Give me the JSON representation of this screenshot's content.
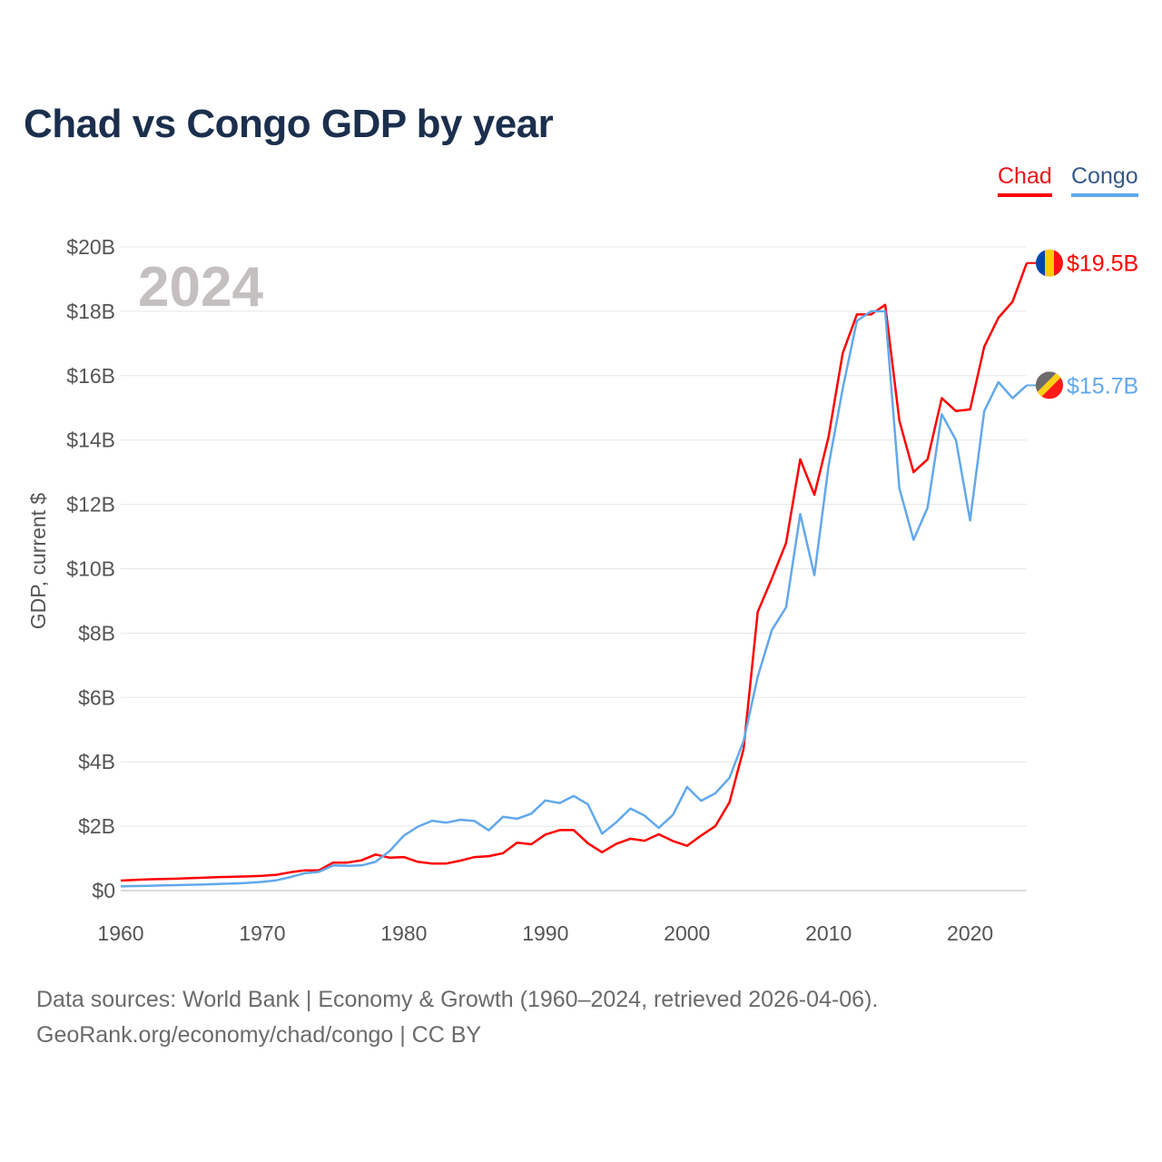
{
  "title": "Chad vs Congo GDP by year",
  "legend": [
    {
      "name": "Chad",
      "color": "#ff0000"
    },
    {
      "name": "Congo",
      "color": "#62a8eb"
    }
  ],
  "footer": {
    "line1": "Data sources: World Bank | Economy & Growth (1960–2024, retrieved 2026-04-06).",
    "line2": "GeoRank.org/economy/chad/congo | CC BY"
  },
  "chart_data": {
    "type": "line",
    "title": "Chad vs Congo GDP by year",
    "ylabel": "GDP, current $",
    "xlabel": "",
    "year_label": "2024",
    "xlim": [
      1960,
      2024
    ],
    "ylim": [
      0,
      20
    ],
    "x_ticks": [
      1960,
      1970,
      1980,
      1990,
      2000,
      2010,
      2020
    ],
    "x_tick_labels": [
      "1960",
      "1970",
      "1980",
      "1990",
      "2000",
      "2010",
      "2020"
    ],
    "y_ticks": [
      0,
      2,
      4,
      6,
      8,
      10,
      12,
      14,
      16,
      18,
      20
    ],
    "y_tick_labels": [
      "$0",
      "$2B",
      "$4B",
      "$6B",
      "$8B",
      "$10B",
      "$12B",
      "$14B",
      "$16B",
      "$18B",
      "$20B"
    ],
    "grid": true,
    "legend_position": "top-right",
    "start_year": 1960,
    "series": [
      {
        "name": "Chad",
        "color": "#ff0000",
        "flag": "chad-flag",
        "end_label": "$19.5B",
        "values": [
          0.31,
          0.33,
          0.35,
          0.36,
          0.37,
          0.39,
          0.4,
          0.42,
          0.43,
          0.44,
          0.46,
          0.49,
          0.57,
          0.63,
          0.63,
          0.87,
          0.87,
          0.94,
          1.12,
          1.02,
          1.04,
          0.89,
          0.84,
          0.84,
          0.93,
          1.04,
          1.07,
          1.16,
          1.49,
          1.44,
          1.74,
          1.88,
          1.88,
          1.47,
          1.19,
          1.45,
          1.61,
          1.55,
          1.75,
          1.54,
          1.39,
          1.71,
          2.0,
          2.74,
          4.4,
          8.66,
          9.7,
          10.8,
          13.4,
          12.3,
          14.1,
          16.7,
          17.9,
          17.9,
          18.2,
          14.6,
          13.0,
          13.4,
          15.3,
          14.9,
          14.95,
          16.9,
          17.8,
          18.3,
          19.5
        ]
      },
      {
        "name": "Congo",
        "color": "#62a8eb",
        "flag": "congo-flag",
        "end_label": "$15.7B",
        "values": [
          0.13,
          0.14,
          0.15,
          0.16,
          0.17,
          0.18,
          0.19,
          0.21,
          0.22,
          0.24,
          0.27,
          0.32,
          0.42,
          0.54,
          0.58,
          0.78,
          0.77,
          0.78,
          0.89,
          1.23,
          1.71,
          1.99,
          2.17,
          2.11,
          2.2,
          2.16,
          1.87,
          2.29,
          2.23,
          2.39,
          2.8,
          2.72,
          2.94,
          2.68,
          1.77,
          2.12,
          2.55,
          2.33,
          1.95,
          2.35,
          3.22,
          2.79,
          3.02,
          3.5,
          4.65,
          6.65,
          8.1,
          8.8,
          11.7,
          9.8,
          13.2,
          15.6,
          17.7,
          18.0,
          18.0,
          12.5,
          10.9,
          11.9,
          14.8,
          14.0,
          11.5,
          14.9,
          15.8,
          15.3,
          15.7
        ]
      }
    ]
  }
}
